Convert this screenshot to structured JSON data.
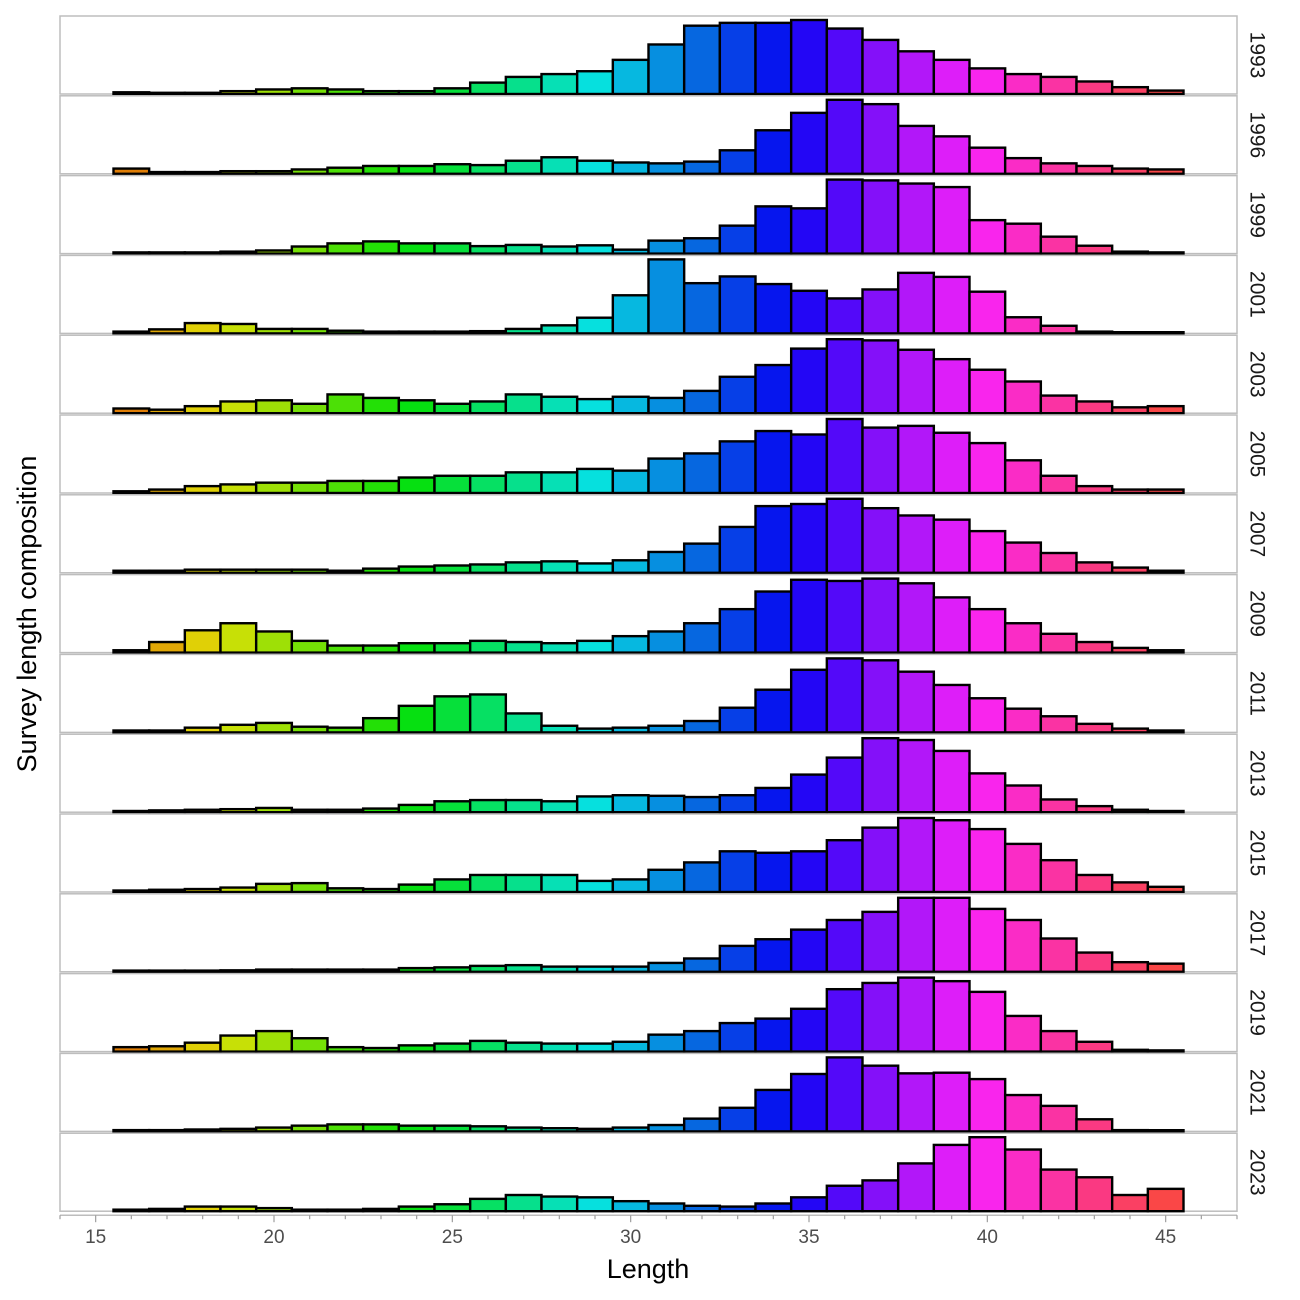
{
  "chart_data": {
    "type": "bar",
    "subtype": "faceted-histogram",
    "xlabel": "Length",
    "ylabel": "Survey length composition",
    "xlim": [
      14,
      47
    ],
    "x_ticks": [
      "15",
      "20",
      "25",
      "30",
      "35",
      "40",
      "45"
    ],
    "x_tick_values": [
      15,
      20,
      25,
      30,
      35,
      40,
      45
    ],
    "bins": [
      16,
      17,
      18,
      19,
      20,
      21,
      22,
      23,
      24,
      25,
      26,
      27,
      28,
      29,
      30,
      31,
      32,
      33,
      34,
      35,
      36,
      37,
      38,
      39,
      40,
      41,
      42,
      43,
      44,
      45
    ],
    "bin_width": 1,
    "fill": "gradient by length (orange → green → cyan → blue → purple → pink)",
    "bar_outline": "#000000",
    "grid": false,
    "legend": "none",
    "facets": [
      {
        "label": "1993",
        "values": [
          0.3,
          0.2,
          0.2,
          0.5,
          0.8,
          1.0,
          0.8,
          0.5,
          0.5,
          1.0,
          2.0,
          3.0,
          3.5,
          4.0,
          6.0,
          8.7,
          12.0,
          12.5,
          12.5,
          13.0,
          11.5,
          9.5,
          7.5,
          6.0,
          4.5,
          3.5,
          3.0,
          2.2,
          1.2,
          0.6
        ]
      },
      {
        "label": "1996",
        "values": [
          0.6,
          0.2,
          0.2,
          0.3,
          0.3,
          0.5,
          0.7,
          0.9,
          0.9,
          1.1,
          1.0,
          1.5,
          1.9,
          1.5,
          1.3,
          1.2,
          1.4,
          2.7,
          5.0,
          7.0,
          8.5,
          8.0,
          5.5,
          4.3,
          3.0,
          1.8,
          1.2,
          0.9,
          0.6,
          0.5
        ]
      },
      {
        "label": "1999",
        "values": [
          0.3,
          0.2,
          0.3,
          0.5,
          0.8,
          1.8,
          2.6,
          3.1,
          2.6,
          2.6,
          1.9,
          2.2,
          1.8,
          2.1,
          1.0,
          3.3,
          3.9,
          7.1,
          12.0,
          11.5,
          18.8,
          18.6,
          17.8,
          16.9,
          8.5,
          7.6,
          4.3,
          2.0,
          0.5,
          0.3
        ]
      },
      {
        "label": "2001",
        "values": [
          0.4,
          0.9,
          2.3,
          2.1,
          1.0,
          1.0,
          0.6,
          0.4,
          0.4,
          0.4,
          0.5,
          1.0,
          1.8,
          3.5,
          8.5,
          16.5,
          11.2,
          12.7,
          11.0,
          9.5,
          7.8,
          9.8,
          13.5,
          12.6,
          9.3,
          3.6,
          1.7,
          0.4,
          0.2,
          0.2
        ]
      },
      {
        "label": "2003",
        "values": [
          0.4,
          0.3,
          0.6,
          1.0,
          1.1,
          0.8,
          1.6,
          1.3,
          1.1,
          0.8,
          1.0,
          1.6,
          1.4,
          1.2,
          1.4,
          1.3,
          1.9,
          3.1,
          4.1,
          5.5,
          6.3,
          6.2,
          5.4,
          4.6,
          3.7,
          2.7,
          1.5,
          1.0,
          0.5,
          0.6
        ]
      },
      {
        "label": "2005",
        "values": [
          0.1,
          0.2,
          0.4,
          0.5,
          0.6,
          0.6,
          0.7,
          0.7,
          0.9,
          1.0,
          1.0,
          1.2,
          1.2,
          1.4,
          1.3,
          2.0,
          2.3,
          3.0,
          3.6,
          3.4,
          4.3,
          3.8,
          3.9,
          3.5,
          2.9,
          1.9,
          1.0,
          0.4,
          0.2,
          0.2
        ]
      },
      {
        "label": "2007",
        "values": [
          0.2,
          0.2,
          0.3,
          0.3,
          0.3,
          0.3,
          0.2,
          0.4,
          0.6,
          0.7,
          0.8,
          1.0,
          1.1,
          0.9,
          1.2,
          2.0,
          2.8,
          4.4,
          6.4,
          6.6,
          7.1,
          6.2,
          5.5,
          5.1,
          4.0,
          2.9,
          1.9,
          1.0,
          0.5,
          0.2
        ]
      },
      {
        "label": "2009",
        "values": [
          0.2,
          0.9,
          1.9,
          2.5,
          1.8,
          1.0,
          0.6,
          0.6,
          0.8,
          0.8,
          1.0,
          0.9,
          0.8,
          1.0,
          1.4,
          1.8,
          2.5,
          3.7,
          5.2,
          6.2,
          6.1,
          6.3,
          5.9,
          4.7,
          3.7,
          2.5,
          1.6,
          0.9,
          0.4,
          0.2
        ]
      },
      {
        "label": "2011",
        "values": [
          0.2,
          0.2,
          0.5,
          0.8,
          1.0,
          0.6,
          0.5,
          1.5,
          2.8,
          3.8,
          4.0,
          2.0,
          0.7,
          0.4,
          0.5,
          0.7,
          1.2,
          2.6,
          4.5,
          6.6,
          7.8,
          7.6,
          6.4,
          5.0,
          3.6,
          2.5,
          1.7,
          0.9,
          0.4,
          0.2
        ]
      },
      {
        "label": "2013",
        "values": [
          0.2,
          0.3,
          0.4,
          0.5,
          0.7,
          0.4,
          0.4,
          0.6,
          1.2,
          1.8,
          2.0,
          2.0,
          1.8,
          2.6,
          2.8,
          2.7,
          2.5,
          2.8,
          4.0,
          6.2,
          9.0,
          12.2,
          11.9,
          10.1,
          6.4,
          4.4,
          2.1,
          1.0,
          0.4,
          0.1
        ]
      },
      {
        "label": "2015",
        "values": [
          0.2,
          0.3,
          0.4,
          0.6,
          1.1,
          1.2,
          0.5,
          0.4,
          1.0,
          1.7,
          2.3,
          2.3,
          2.3,
          1.5,
          1.7,
          3.0,
          4.0,
          5.5,
          5.3,
          5.5,
          7.0,
          8.7,
          10.0,
          9.7,
          8.5,
          6.5,
          4.3,
          2.3,
          1.3,
          0.7
        ]
      },
      {
        "label": "2017",
        "values": [
          0.1,
          0.1,
          0.1,
          0.2,
          0.3,
          0.3,
          0.3,
          0.3,
          0.5,
          0.6,
          0.8,
          0.9,
          0.7,
          0.7,
          0.7,
          1.2,
          1.8,
          3.5,
          4.4,
          5.7,
          7.0,
          8.1,
          10.0,
          10.0,
          8.5,
          7.0,
          4.5,
          2.6,
          1.3,
          1.1
        ]
      },
      {
        "label": "2019",
        "values": [
          0.5,
          0.6,
          1.0,
          1.8,
          2.3,
          1.5,
          0.5,
          0.4,
          0.7,
          0.9,
          1.2,
          1.0,
          0.9,
          0.9,
          1.1,
          1.9,
          2.3,
          3.2,
          3.7,
          4.8,
          7.0,
          7.7,
          8.3,
          7.9,
          6.7,
          4.0,
          2.3,
          1.1,
          0.2,
          0.1
        ]
      },
      {
        "label": "2021",
        "values": [
          0.2,
          0.2,
          0.3,
          0.4,
          0.6,
          0.9,
          1.1,
          1.1,
          0.9,
          0.9,
          0.8,
          0.6,
          0.5,
          0.4,
          0.6,
          1.0,
          2.0,
          3.7,
          6.5,
          9.0,
          11.6,
          10.3,
          9.1,
          9.2,
          8.2,
          5.7,
          4.0,
          1.9,
          0.2,
          0.1
        ]
      },
      {
        "label": "2023",
        "values": [
          0.2,
          0.3,
          0.6,
          0.6,
          0.4,
          0.2,
          0.2,
          0.3,
          0.6,
          0.9,
          1.6,
          2.1,
          1.9,
          1.8,
          1.3,
          1.0,
          0.7,
          0.6,
          1.0,
          1.8,
          3.3,
          4.0,
          6.2,
          8.6,
          9.6,
          8.0,
          5.4,
          4.4,
          2.1,
          2.9
        ]
      }
    ]
  }
}
